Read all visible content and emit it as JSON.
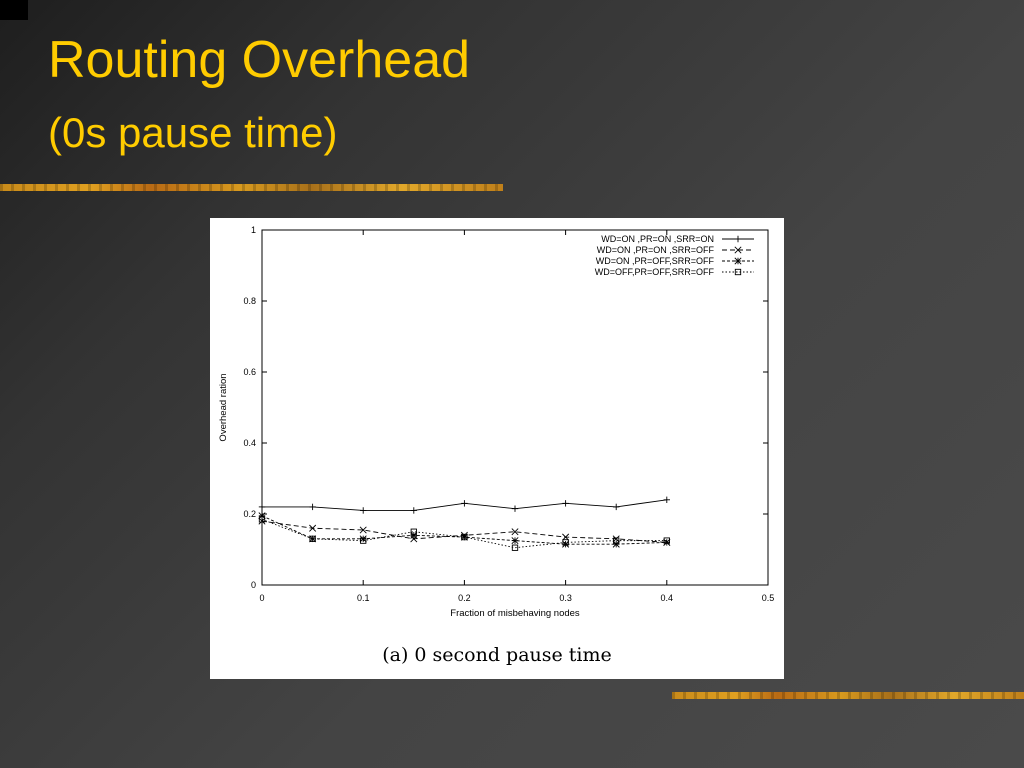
{
  "slide": {
    "title": "Routing Overhead",
    "subtitle": "(0s pause time)",
    "accent_color": "#ffcc00"
  },
  "figure": {
    "caption": "(a) 0 second pause time"
  },
  "chart_data": {
    "type": "line",
    "xlabel": "Fraction of misbehaving nodes",
    "ylabel": "Overhead ration",
    "xlim": [
      0,
      0.5
    ],
    "ylim": [
      0,
      1
    ],
    "xticks": [
      "0",
      "0.1",
      "0.2",
      "0.3",
      "0.4",
      "0.5"
    ],
    "yticks": [
      "0",
      "0.2",
      "0.4",
      "0.6",
      "0.8",
      "1"
    ],
    "legend_position": "top-right",
    "grid": false,
    "x": [
      0,
      0.05,
      0.1,
      0.15,
      0.2,
      0.25,
      0.3,
      0.35,
      0.4
    ],
    "series": [
      {
        "name": "WD=ON  ,PR=ON  ,SRR=ON",
        "marker": "plus",
        "dash": "solid",
        "values": [
          0.22,
          0.22,
          0.21,
          0.21,
          0.23,
          0.215,
          0.23,
          0.22,
          0.24
        ]
      },
      {
        "name": "WD=ON  ,PR=ON  ,SRR=OFF",
        "marker": "cross",
        "dash": "dashed",
        "values": [
          0.18,
          0.16,
          0.155,
          0.13,
          0.14,
          0.15,
          0.135,
          0.13,
          0.12
        ]
      },
      {
        "name": "WD=ON  ,PR=OFF,SRR=OFF",
        "marker": "star",
        "dash": "short-dashed",
        "values": [
          0.195,
          0.13,
          0.13,
          0.14,
          0.135,
          0.125,
          0.115,
          0.115,
          0.12
        ]
      },
      {
        "name": "WD=OFF,PR=OFF,SRR=OFF",
        "marker": "square",
        "dash": "dotted",
        "values": [
          0.185,
          0.13,
          0.125,
          0.15,
          0.135,
          0.105,
          0.12,
          0.125,
          0.125
        ]
      }
    ]
  }
}
